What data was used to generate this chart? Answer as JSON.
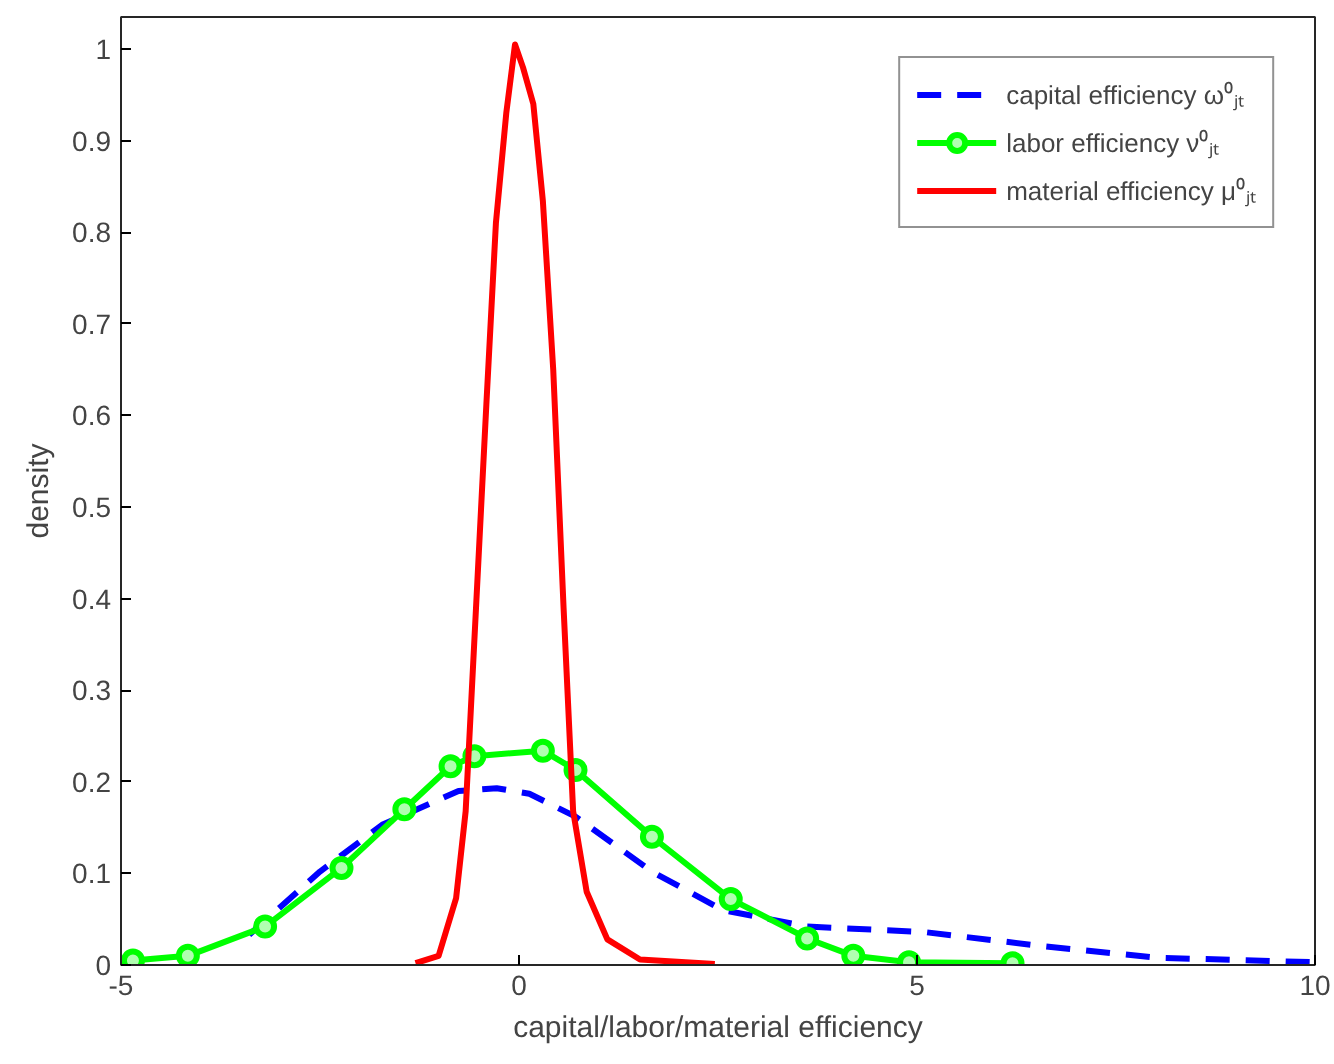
{
  "chart_data": {
    "type": "line",
    "xlabel": "capital/labor/material efficiency",
    "ylabel": "density",
    "xlim": [
      -5,
      10
    ],
    "xticks": [
      -5,
      0,
      5,
      10
    ],
    "ylim": [
      0,
      1.035
    ],
    "yticks": [
      0,
      0.1,
      0.2,
      0.3,
      0.4,
      0.5,
      0.6,
      0.7,
      0.8,
      0.9,
      1
    ],
    "grid": false,
    "legend": "top right",
    "series": [
      {
        "name": "capital efficiency ω⁰ⱼₜ",
        "color": "#0000ff",
        "line_style": "dashed",
        "marker": "none",
        "x": [
          -3.39,
          -2.5,
          -1.72,
          -0.76,
          -0.28,
          0.13,
          0.71,
          1.67,
          2.56,
          3.62,
          5.09,
          6.54,
          8.0,
          10.0
        ],
        "values": [
          0.033,
          0.102,
          0.153,
          0.19,
          0.193,
          0.187,
          0.162,
          0.102,
          0.06,
          0.042,
          0.036,
          0.021,
          0.008,
          0.003
        ]
      },
      {
        "name": "labor efficiency ν⁰ⱼₜ",
        "color": "#00ff00",
        "line_style": "solid",
        "marker": "circle",
        "x": [
          -4.85,
          -4.16,
          -3.19,
          -2.23,
          -1.44,
          -0.86,
          -0.56,
          0.3,
          0.71,
          1.67,
          2.66,
          3.62,
          4.2,
          4.9,
          6.2
        ],
        "values": [
          0.005,
          0.01,
          0.042,
          0.106,
          0.17,
          0.217,
          0.228,
          0.234,
          0.213,
          0.14,
          0.072,
          0.029,
          0.01,
          0.003,
          0.002
        ]
      },
      {
        "name": "material efficiency μ⁰ⱼₜ",
        "color": "#ff0000",
        "line_style": "solid",
        "marker": "none",
        "x": [
          -1.3,
          -1.01,
          -0.79,
          -0.67,
          -0.54,
          -0.41,
          -0.29,
          -0.16,
          -0.05,
          0.05,
          0.18,
          0.3,
          0.43,
          0.56,
          0.68,
          0.85,
          1.11,
          1.52,
          2.46
        ],
        "values": [
          0.002,
          0.01,
          0.073,
          0.168,
          0.39,
          0.612,
          0.81,
          0.93,
          1.005,
          0.98,
          0.94,
          0.834,
          0.65,
          0.39,
          0.168,
          0.08,
          0.028,
          0.006,
          0.001
        ]
      }
    ]
  }
}
